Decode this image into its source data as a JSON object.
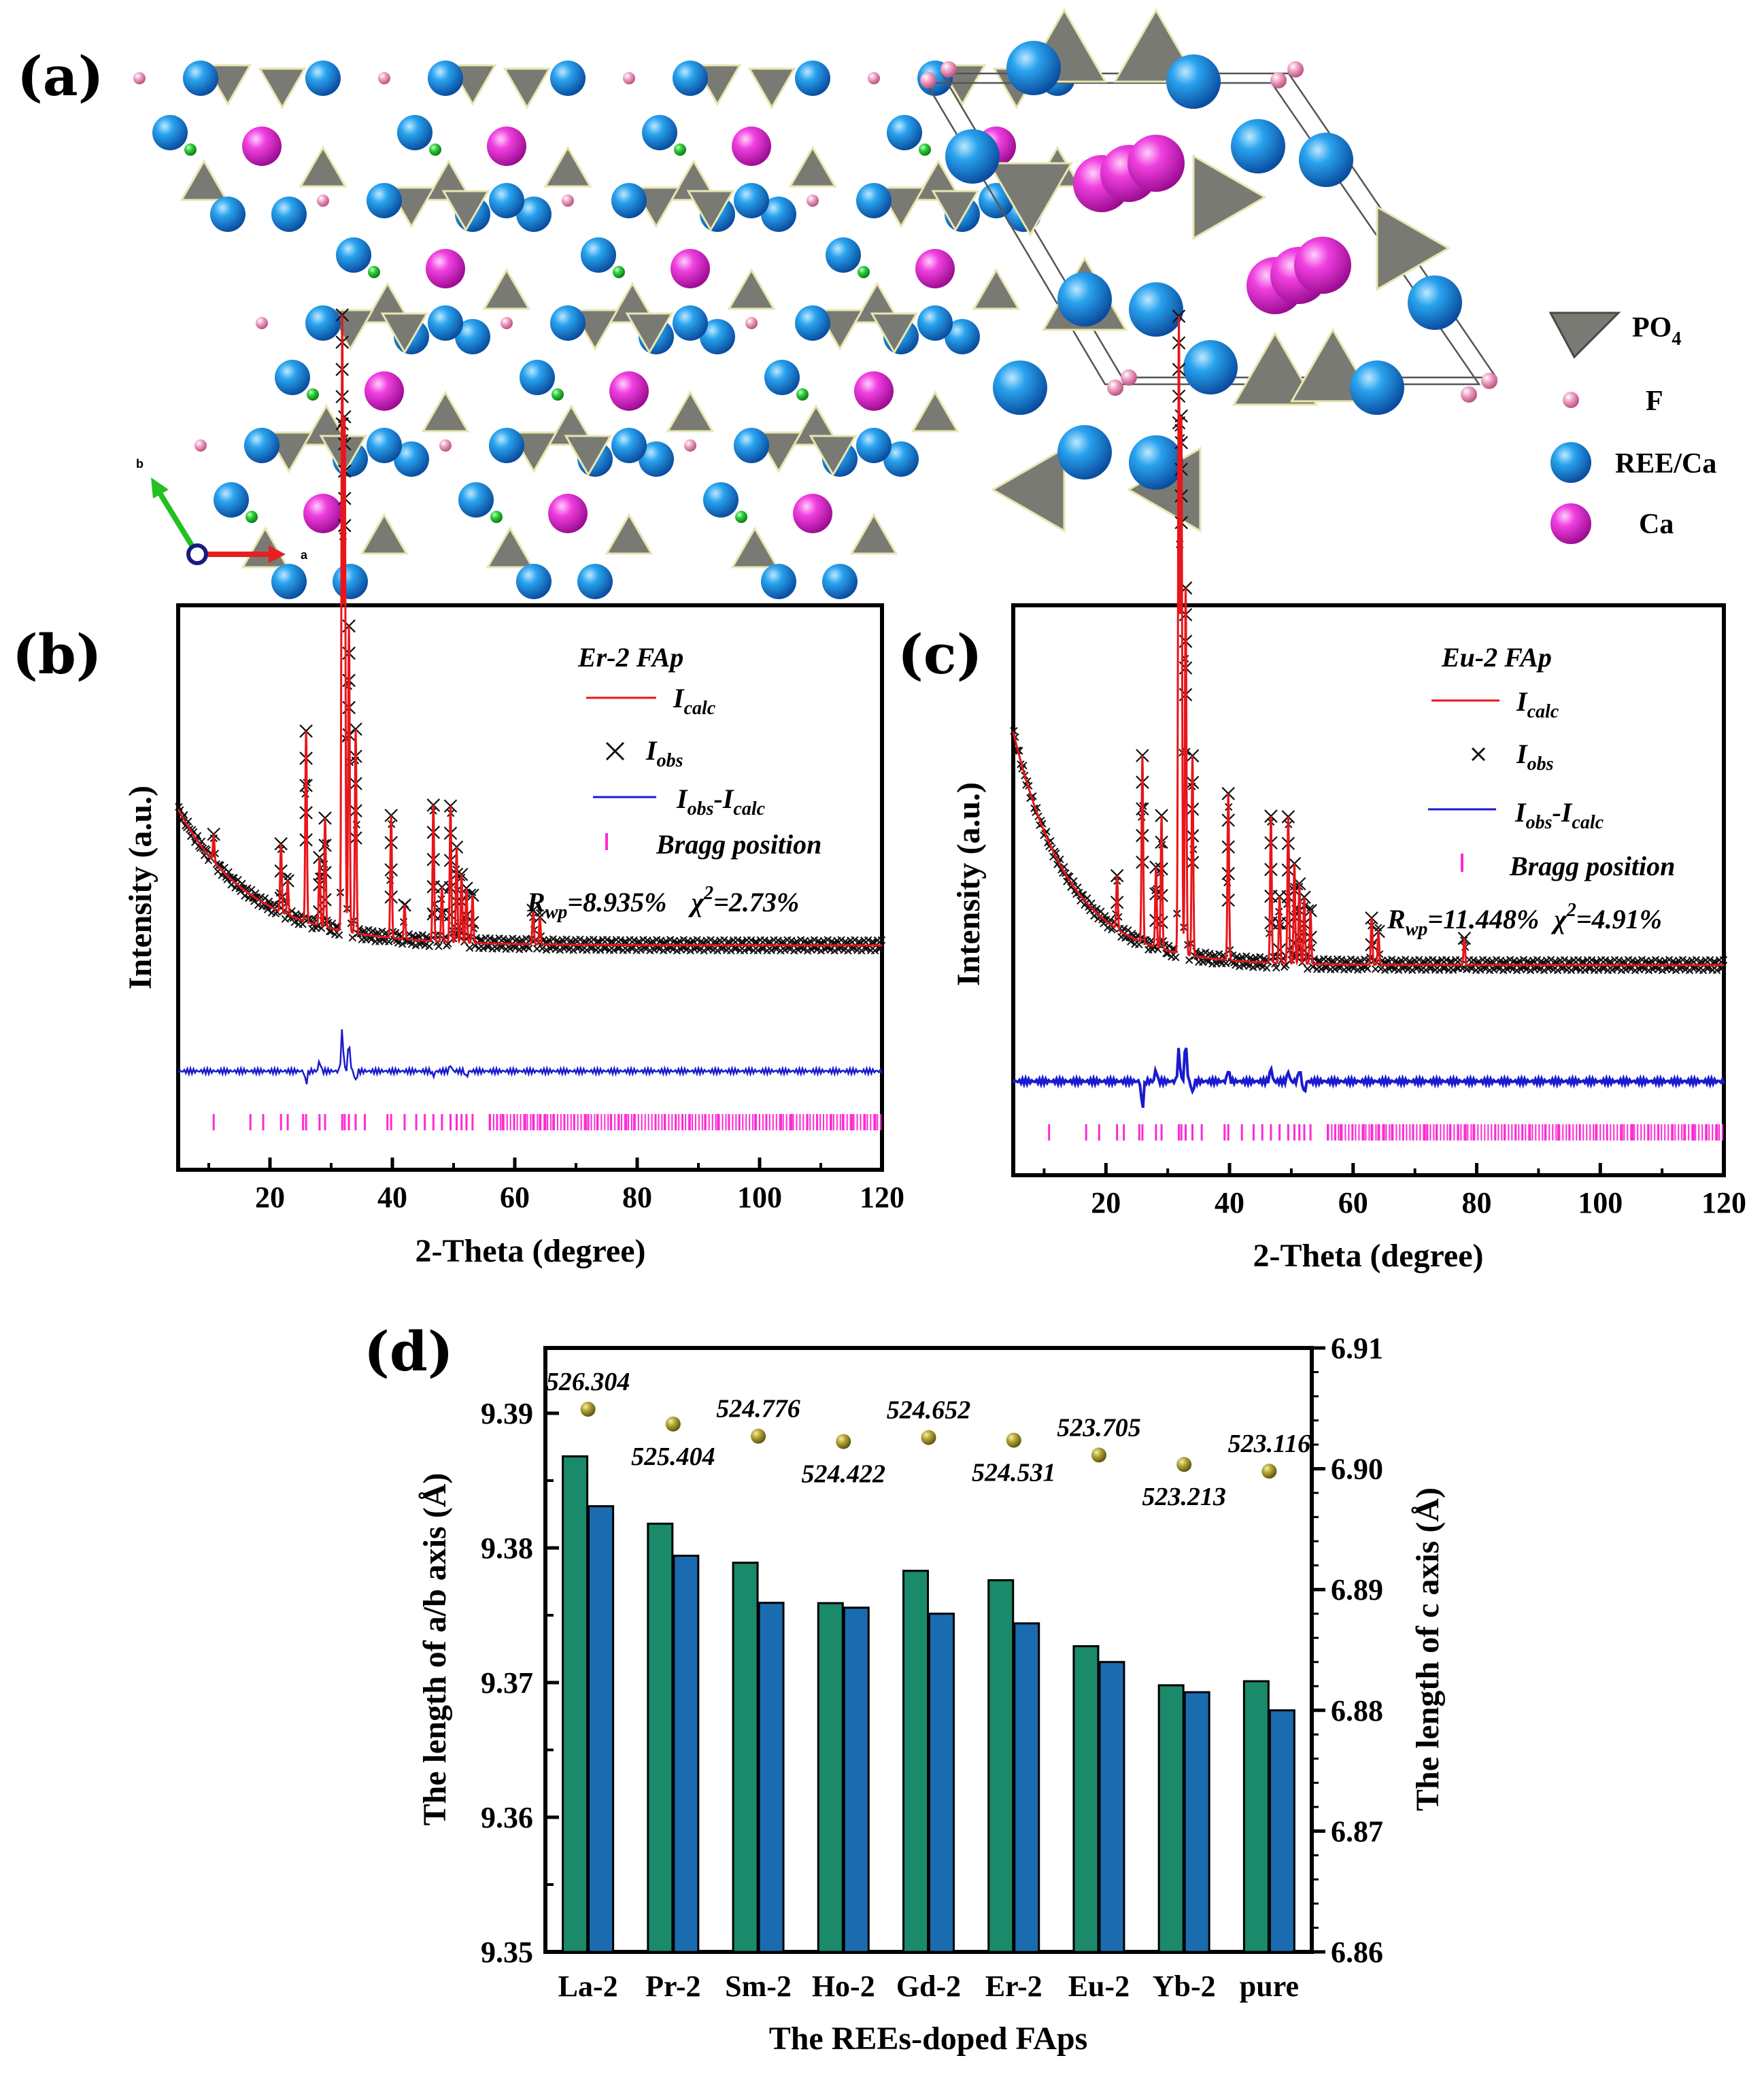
{
  "panel_labels": {
    "a": "(a)",
    "b": "(b)",
    "c": "(c)",
    "d": "(d)"
  },
  "panel_a": {
    "axis_labels": {
      "a": "a",
      "b": "b"
    },
    "legend": [
      {
        "name": "PO4",
        "main": "PO",
        "sub": "4",
        "icon": "tetrahedron-icon",
        "color": "#7a7a74"
      },
      {
        "name": "F",
        "main": "F",
        "sub": "",
        "icon": "small-sphere-icon",
        "color": "#e07aa8"
      },
      {
        "name": "REE/Ca",
        "main": "REE/Ca",
        "sub": "",
        "icon": "sphere-icon",
        "color": "#1e90e0"
      },
      {
        "name": "Ca",
        "main": "Ca",
        "sub": "",
        "icon": "sphere-icon",
        "color": "#e62fd8"
      }
    ]
  },
  "chart_data": [
    {
      "panel": "b",
      "type": "line",
      "title": "Er-2 FAp",
      "xlabel": "2-Theta (degree)",
      "ylabel": "Intensity (a.u.)",
      "xlim": [
        5,
        120
      ],
      "xticks": [
        20,
        40,
        60,
        80,
        100,
        120
      ],
      "legend": {
        "calc": {
          "main": "I",
          "sub": "calc"
        },
        "obs": {
          "main": "I",
          "sub": "obs"
        },
        "diff": {
          "main1": "I",
          "sub1": "obs",
          "dash": "-",
          "main2": "I",
          "sub2": "calc"
        },
        "bragg": "Bragg position"
      },
      "stats": {
        "rwp_main": "R",
        "rwp_sub": "wp",
        "rwp_value": "=8.935%",
        "chi_main": "χ",
        "chi_sup": "2",
        "chi_value": "=2.73%"
      },
      "series_colors": {
        "calc": "#e8151a",
        "obs": "#111111",
        "diff": "#1a1ad0",
        "bragg": "#ff2ad4"
      },
      "background": {
        "start": 0.4,
        "end": 0.2,
        "decay": 12
      },
      "peaks": [
        [
          10.8,
          0.04
        ],
        [
          21.8,
          0.1
        ],
        [
          22.9,
          0.05
        ],
        [
          25.9,
          0.28
        ],
        [
          28.1,
          0.1
        ],
        [
          29.0,
          0.16
        ],
        [
          31.8,
          0.9
        ],
        [
          32.2,
          0.75
        ],
        [
          32.9,
          0.45
        ],
        [
          34.0,
          0.3
        ],
        [
          39.8,
          0.18
        ],
        [
          42.0,
          0.05
        ],
        [
          46.7,
          0.2
        ],
        [
          48.1,
          0.08
        ],
        [
          49.5,
          0.2
        ],
        [
          50.5,
          0.14
        ],
        [
          51.3,
          0.1
        ],
        [
          52.1,
          0.08
        ],
        [
          53.1,
          0.07
        ],
        [
          63.0,
          0.05
        ],
        [
          64.1,
          0.04
        ]
      ],
      "diff_spikes": [
        [
          28.1,
          0.25
        ],
        [
          31.8,
          1.0
        ],
        [
          32.9,
          0.7
        ],
        [
          25.9,
          -0.3
        ],
        [
          34.0,
          -0.25
        ],
        [
          49.5,
          0.15
        ],
        [
          46.7,
          -0.12
        ],
        [
          52.1,
          -0.15
        ]
      ],
      "bragg_positions": [
        10.8,
        16.8,
        18.9,
        21.8,
        22.9,
        25.4,
        25.9,
        28.1,
        29.0,
        31.8,
        32.2,
        32.9,
        34.0,
        35.5,
        39.2,
        39.8,
        42.0,
        43.9,
        45.3,
        46.7,
        48.1,
        49.5,
        50.5,
        51.3,
        52.1,
        53.1,
        55.9,
        57.1,
        58.0,
        59.9,
        61.7,
        63.0,
        64.1,
        65.0,
        66.3,
        68.1,
        69.7,
        71.6,
        72.0,
        73.5,
        75.7,
        77.0,
        78.2,
        79.5,
        83.0,
        84.5,
        86.3,
        87.4,
        88.6,
        91.1,
        93.2,
        95.0,
        96.7,
        99.3,
        101.1,
        103.5,
        105.2,
        107.8,
        109.4,
        111.7,
        113.6,
        115.1,
        117.2,
        118.9
      ]
    },
    {
      "panel": "c",
      "type": "line",
      "title": "Eu-2 FAp",
      "xlabel": "2-Theta (degree)",
      "ylabel": "Intensity (a.u.)",
      "xlim": [
        5,
        120
      ],
      "xticks": [
        20,
        40,
        60,
        80,
        100,
        120
      ],
      "legend": {
        "calc": {
          "main": "I",
          "sub": "calc"
        },
        "obs": {
          "main": "I",
          "sub": "obs"
        },
        "diff": {
          "main1": "I",
          "sub1": "obs",
          "dash": "-",
          "main2": "I",
          "sub2": "calc"
        },
        "bragg": "Bragg position"
      },
      "stats": {
        "rwp_main": "R",
        "rwp_sub": "wp",
        "rwp_value": "=11.448%",
        "chi_main": "χ",
        "chi_sup": "2",
        "chi_value": "=4.91%"
      },
      "series_colors": {
        "calc": "#e8151a",
        "obs": "#111111",
        "diff": "#1a1ad0",
        "bragg": "#ff2ad4"
      },
      "background": {
        "start": 0.55,
        "end": 0.2,
        "decay": 9
      },
      "peaks": [
        [
          21.8,
          0.08
        ],
        [
          25.9,
          0.28
        ],
        [
          28.1,
          0.12
        ],
        [
          29.0,
          0.2
        ],
        [
          31.8,
          0.95
        ],
        [
          32.2,
          0.8
        ],
        [
          32.9,
          0.55
        ],
        [
          34.0,
          0.3
        ],
        [
          39.8,
          0.25
        ],
        [
          46.7,
          0.22
        ],
        [
          48.1,
          0.1
        ],
        [
          49.5,
          0.22
        ],
        [
          50.5,
          0.15
        ],
        [
          51.3,
          0.12
        ],
        [
          52.1,
          0.1
        ],
        [
          53.1,
          0.08
        ],
        [
          63.0,
          0.07
        ],
        [
          64.1,
          0.05
        ],
        [
          78.0,
          0.04
        ]
      ],
      "diff_spikes": [
        [
          28.1,
          0.3
        ],
        [
          31.8,
          0.8
        ],
        [
          32.9,
          1.0
        ],
        [
          25.9,
          -0.7
        ],
        [
          34.0,
          -0.3
        ],
        [
          39.8,
          0.3
        ],
        [
          46.7,
          0.35
        ],
        [
          49.5,
          0.25
        ],
        [
          52.1,
          -0.3
        ],
        [
          51.3,
          0.3
        ]
      ],
      "bragg_positions": [
        10.8,
        16.8,
        18.9,
        21.8,
        22.9,
        25.4,
        25.9,
        28.1,
        29.0,
        31.8,
        32.2,
        32.9,
        34.0,
        35.5,
        39.2,
        39.8,
        42.0,
        43.9,
        45.3,
        46.7,
        48.1,
        49.5,
        50.5,
        51.3,
        52.1,
        53.1,
        55.9,
        57.1,
        58.0,
        59.9,
        61.7,
        63.0,
        64.1,
        65.0,
        66.3,
        68.1,
        69.7,
        71.6,
        72.0,
        73.5,
        75.7,
        77.0,
        78.2,
        79.5,
        83.0,
        84.5,
        86.3,
        87.4,
        88.6,
        91.1,
        93.2,
        95.0,
        96.7,
        99.3,
        101.1,
        103.5,
        105.2,
        107.8,
        109.4,
        111.7,
        113.6,
        115.1,
        117.2,
        118.9
      ]
    },
    {
      "panel": "d",
      "type": "bar",
      "xlabel": "The REEs-doped FAps",
      "ylabel": "The length of a/b axis (Å)",
      "y2label": "The length of c axis (Å)",
      "categories": [
        "La-2",
        "Pr-2",
        "Sm-2",
        "Ho-2",
        "Gd-2",
        "Er-2",
        "Eu-2",
        "Yb-2",
        "pure"
      ],
      "ylim": [
        9.35,
        9.395
      ],
      "yticks": [
        "9.35",
        "9.36",
        "9.37",
        "9.38",
        "9.39"
      ],
      "y2lim": [
        6.86,
        6.91
      ],
      "y2ticks": [
        "6.86",
        "6.87",
        "6.88",
        "6.89",
        "6.90",
        "6.91"
      ],
      "series": [
        {
          "name": "a/b axis",
          "axis": "left",
          "color": "#1a8a6a",
          "values": [
            9.3868,
            9.3818,
            9.3789,
            9.3759,
            9.3783,
            9.3776,
            9.3727,
            9.3698,
            9.3701
          ]
        },
        {
          "name": "c axis",
          "axis": "right",
          "color": "#1b6bb0",
          "values": [
            6.8969,
            6.8928,
            6.8889,
            6.8885,
            6.888,
            6.8872,
            6.884,
            6.8815,
            6.88
          ]
        }
      ],
      "volume": {
        "color": "#9a8a20",
        "labels": [
          "526.304",
          "525.404",
          "524.776",
          "524.422",
          "524.652",
          "524.531",
          "523.705",
          "523.213",
          "523.116"
        ],
        "dots": [
          9.3903,
          9.3892,
          9.3883,
          9.3879,
          9.3882,
          9.388,
          9.3869,
          9.3862,
          9.3857
        ],
        "label_offsets": [
          -1,
          1,
          -1,
          1,
          -1,
          1,
          -1,
          1,
          -1
        ]
      }
    }
  ]
}
